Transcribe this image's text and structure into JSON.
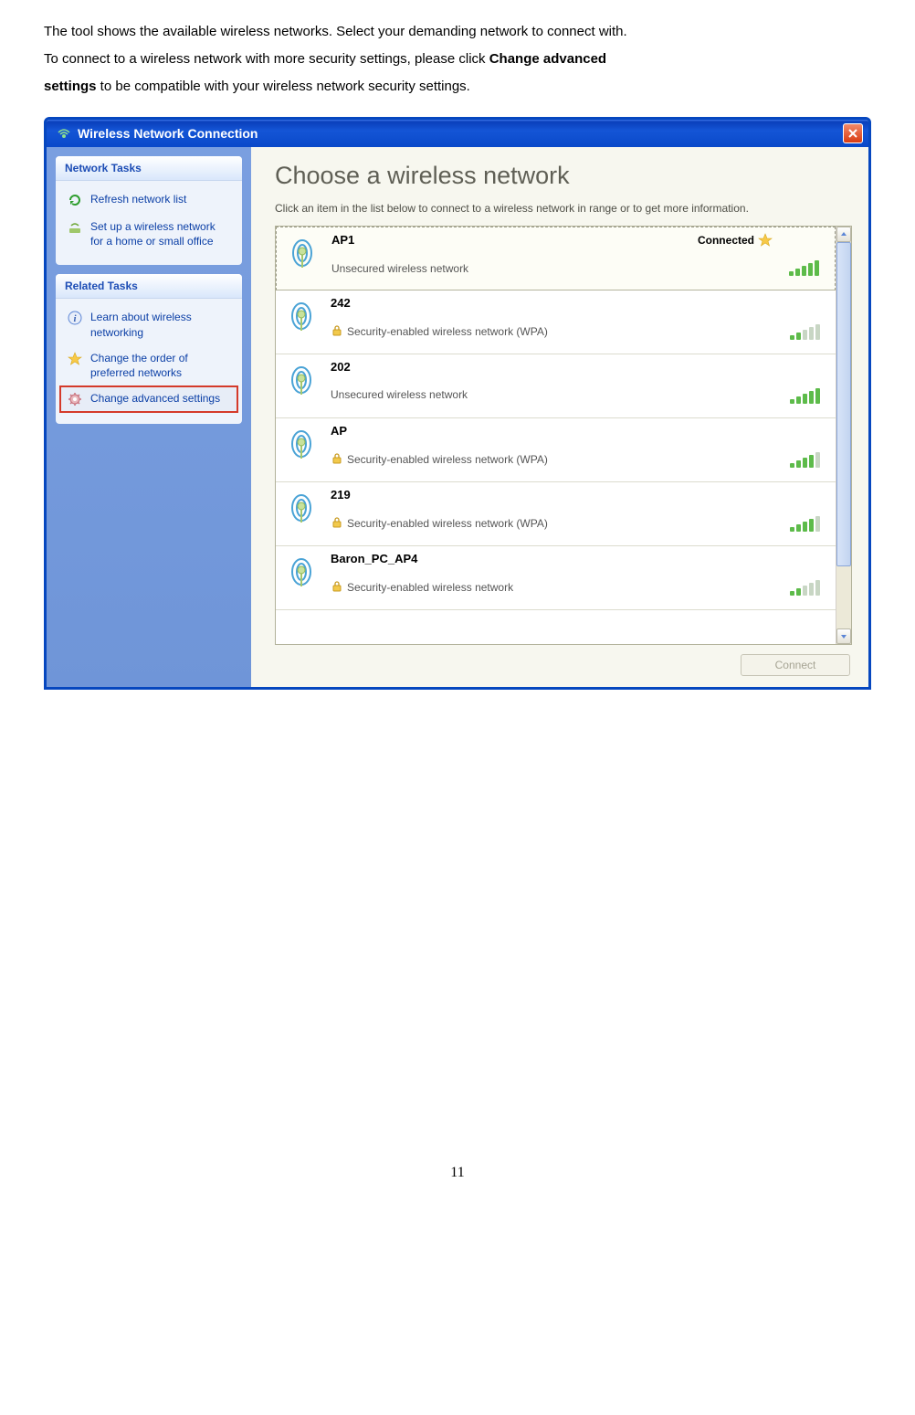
{
  "intro": {
    "l1": "The tool shows the available wireless networks. Select your demanding network to connect with.",
    "l2a": "To connect to a wireless network with more security settings, please click ",
    "l2b": "Change advanced",
    "l3a": "settings",
    "l3b": " to be compatible with your wireless network security settings."
  },
  "window": {
    "title": "Wireless Network Connection"
  },
  "sidebar": {
    "panel1": {
      "header": "Network Tasks",
      "items": [
        {
          "label": "Refresh network list"
        },
        {
          "label": "Set up a wireless network for a home or small office"
        }
      ]
    },
    "panel2": {
      "header": "Related Tasks",
      "items": [
        {
          "label": "Learn about wireless networking"
        },
        {
          "label": "Change the order of preferred networks"
        },
        {
          "label": "Change advanced settings"
        }
      ]
    }
  },
  "main": {
    "heading": "Choose a wireless network",
    "instruction": "Click an item in the list below to connect to a wireless network in range or to get more information.",
    "connect_label": "Connect"
  },
  "networks": [
    {
      "name": "AP1",
      "desc": "Unsecured wireless network",
      "status": "Connected",
      "secured": false,
      "selected": true,
      "bars": 5,
      "bar_colors": [
        "#5dbb4a",
        "#5dbb4a",
        "#5dbb4a",
        "#5dbb4a",
        "#5dbb4a"
      ]
    },
    {
      "name": "242",
      "desc": "Security-enabled wireless network (WPA)",
      "status": "",
      "secured": true,
      "selected": false,
      "bars": 2,
      "bar_colors": [
        "#5dbb4a",
        "#5dbb4a",
        "#c8d6c4",
        "#c8d6c4",
        "#c8d6c4"
      ]
    },
    {
      "name": "202",
      "desc": "Unsecured wireless network",
      "status": "",
      "secured": false,
      "selected": false,
      "bars": 5,
      "bar_colors": [
        "#5dbb4a",
        "#5dbb4a",
        "#5dbb4a",
        "#5dbb4a",
        "#5dbb4a"
      ]
    },
    {
      "name": "AP",
      "desc": "Security-enabled wireless network (WPA)",
      "status": "",
      "secured": true,
      "selected": false,
      "bars": 4,
      "bar_colors": [
        "#5dbb4a",
        "#5dbb4a",
        "#5dbb4a",
        "#5dbb4a",
        "#c8d6c4"
      ]
    },
    {
      "name": "219",
      "desc": "Security-enabled wireless network (WPA)",
      "status": "",
      "secured": true,
      "selected": false,
      "bars": 4,
      "bar_colors": [
        "#5dbb4a",
        "#5dbb4a",
        "#5dbb4a",
        "#5dbb4a",
        "#c8d6c4"
      ]
    },
    {
      "name": "Baron_PC_AP4",
      "desc": "Security-enabled wireless network",
      "status": "",
      "secured": true,
      "selected": false,
      "bars": 2,
      "bar_colors": [
        "#5dbb4a",
        "#5dbb4a",
        "#c8d6c4",
        "#c8d6c4",
        "#c8d6c4"
      ]
    }
  ],
  "scrollbar": {
    "thumb_top_pct": 0,
    "thumb_height_pct": 84
  },
  "page_number": "11",
  "colors": {
    "titlebar_grad_top": "#3b74e8",
    "titlebar_grad_bot": "#0a49c9",
    "window_border": "#0647bf",
    "sidebar_bg_top": "#7a9fe0",
    "panel_header_text": "#1d4db5",
    "main_bg": "#f7f7ef",
    "signal_green": "#5dbb4a",
    "signal_dim": "#c8d6c4",
    "highlight_border": "#d43a2a"
  }
}
